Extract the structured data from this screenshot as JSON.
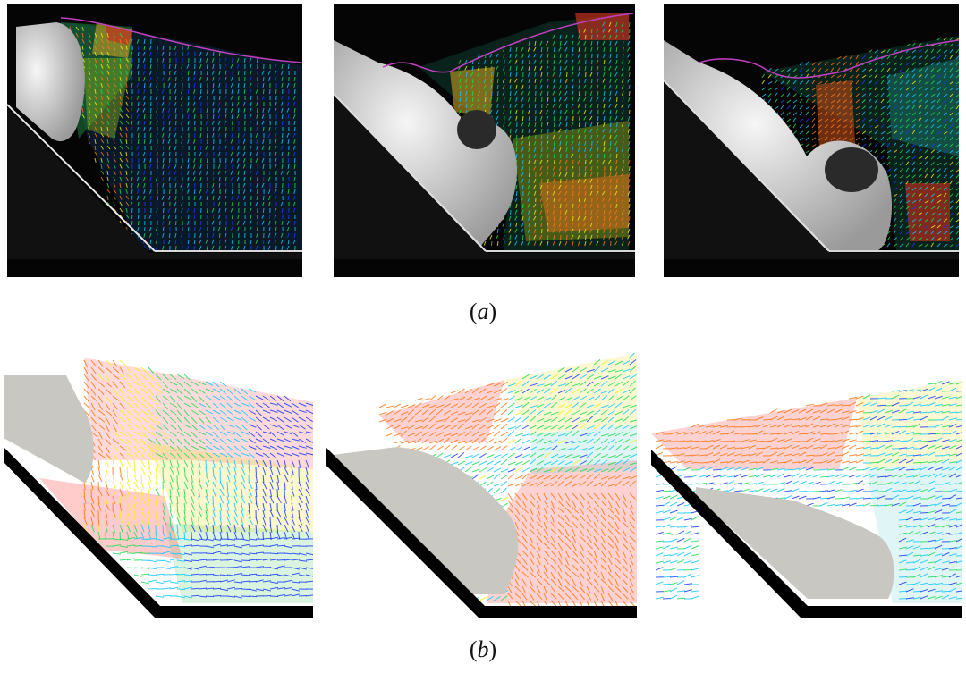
{
  "figure": {
    "caption_a_letter": "a",
    "caption_b_letter": "b"
  },
  "panels_a": [
    {
      "name": "experiment-frame-1"
    },
    {
      "name": "experiment-frame-2"
    },
    {
      "name": "experiment-frame-3"
    }
  ],
  "panels_b": [
    {
      "name": "simulation-frame-1"
    },
    {
      "name": "simulation-frame-2"
    },
    {
      "name": "simulation-frame-3"
    }
  ],
  "colors": {
    "photo_bg": "#050506",
    "granular_exp": "#e8e8e8",
    "granular_sim": "#c9c7c1",
    "wall": "#000000",
    "vector_scale": [
      "#1b3cff",
      "#14c8ff",
      "#22dd55",
      "#f2f21a",
      "#ff7a1a",
      "#ff1a1a"
    ]
  }
}
